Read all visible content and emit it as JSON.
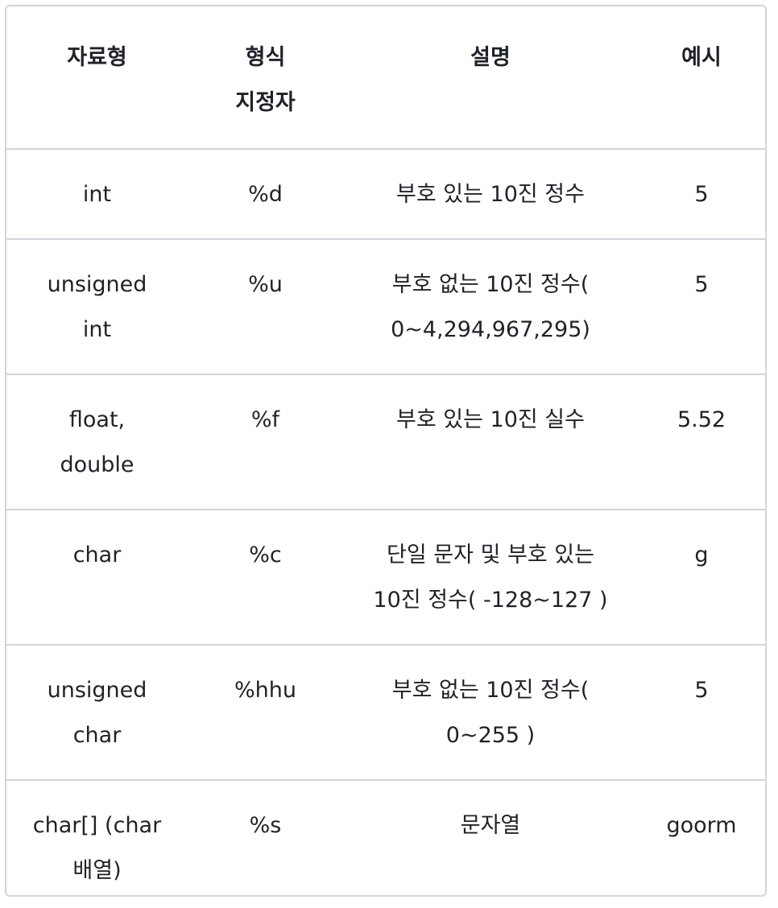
{
  "table": {
    "headers": [
      "자료형",
      "형식\n지정자",
      "설명",
      "예시"
    ],
    "header_lines": [
      [
        "자료형"
      ],
      [
        "형식",
        "지정자"
      ],
      [
        "설명"
      ],
      [
        "예시"
      ]
    ],
    "rows": [
      {
        "type": [
          "int"
        ],
        "specifier": [
          "%d"
        ],
        "description": [
          "부호 있는 10진 정수"
        ],
        "example": [
          "5"
        ]
      },
      {
        "type": [
          "unsigned",
          "int"
        ],
        "specifier": [
          "%u"
        ],
        "description": [
          "부호 없는 10진 정수(",
          "0~4,294,967,295)"
        ],
        "example": [
          "5"
        ]
      },
      {
        "type": [
          "float,",
          "double"
        ],
        "specifier": [
          "%f"
        ],
        "description": [
          "부호 있는 10진 실수"
        ],
        "example": [
          "5.52"
        ]
      },
      {
        "type": [
          "char"
        ],
        "specifier": [
          "%c"
        ],
        "description": [
          "단일 문자 및 부호 있는",
          "10진 정수( -128~127 )"
        ],
        "example": [
          "g"
        ]
      },
      {
        "type": [
          "unsigned",
          "char"
        ],
        "specifier": [
          "%hhu"
        ],
        "description": [
          "부호 없는 10진 정수(",
          "0~255 )"
        ],
        "example": [
          "5"
        ]
      },
      {
        "type": [
          "char[] (char",
          "배열)"
        ],
        "specifier": [
          "%s"
        ],
        "description": [
          "문자열"
        ],
        "example": [
          "goorm"
        ]
      }
    ]
  }
}
